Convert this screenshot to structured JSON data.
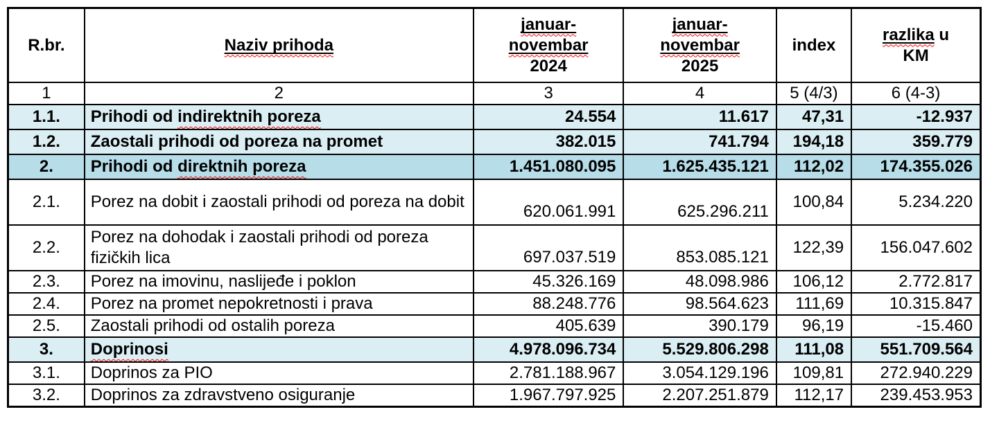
{
  "table": {
    "colors": {
      "row_light": "#daeef3",
      "row_medium": "#b6dde8",
      "squiggle": "#ff0000",
      "border": "#000000"
    },
    "columns_header": [
      {
        "id": "rbr",
        "parts": [
          {
            "text": "R.br."
          }
        ]
      },
      {
        "id": "naziv",
        "parts": [
          {
            "text": "Naziv prihoda",
            "u": true,
            "sq": true
          }
        ]
      },
      {
        "id": "p2024",
        "parts": [
          {
            "text": "januar-",
            "u": true,
            "sq": true
          },
          {
            "br": true
          },
          {
            "text": "novembar",
            "u": true,
            "sq": true
          },
          {
            "br": true
          },
          {
            "text": "2024"
          }
        ]
      },
      {
        "id": "p2025",
        "parts": [
          {
            "text": "januar-",
            "u": true,
            "sq": true
          },
          {
            "br": true
          },
          {
            "text": "novembar",
            "u": true,
            "sq": true
          },
          {
            "br": true
          },
          {
            "text": "2025"
          }
        ]
      },
      {
        "id": "index",
        "parts": [
          {
            "text": "index"
          }
        ]
      },
      {
        "id": "razlika",
        "parts": [
          {
            "text": "razlika",
            "u": true,
            "sq": true
          },
          {
            "text": " u"
          },
          {
            "br": true
          },
          {
            "text": "KM"
          }
        ]
      }
    ],
    "index_row": [
      "1",
      "2",
      "3",
      "4",
      "5 (4/3)",
      "6 (4-3)"
    ],
    "rows": [
      {
        "num": "1.1.",
        "name_parts": [
          {
            "text": "Prihodi od "
          },
          {
            "text": "indirektnih poreza",
            "sq": true
          }
        ],
        "v1": "24.554",
        "v2": "11.617",
        "idx": "47,31",
        "diff": "-12.937",
        "bold": true,
        "bg": "light",
        "tall": false
      },
      {
        "num": "1.2.",
        "name_parts": [
          {
            "text": "Zaostali prihodi od poreza na promet"
          }
        ],
        "v1": "382.015",
        "v2": "741.794",
        "idx": "194,18",
        "diff": "359.779",
        "bold": true,
        "bg": "light",
        "tall": false
      },
      {
        "num": "2.",
        "name_parts": [
          {
            "text": "Prihodi od "
          },
          {
            "text": "direktnih poreza",
            "sq": true
          }
        ],
        "v1": "1.451.080.095",
        "v2": "1.625.435.121",
        "idx": "112,02",
        "diff": "174.355.026",
        "bold": true,
        "bg": "medium",
        "tall": false
      },
      {
        "num": "2.1.",
        "name_parts": [
          {
            "text": "Porez na dobit i zaostali prihodi od poreza na dobit"
          }
        ],
        "v1": "620.061.991",
        "v2": "625.296.211",
        "idx": "100,84",
        "diff": "5.234.220",
        "bold": false,
        "bg": "none",
        "tall": true
      },
      {
        "num": "2.2.",
        "name_parts": [
          {
            "text": "Porez na dohodak i zaostali prihodi od poreza fizičkih lica"
          }
        ],
        "v1": "697.037.519",
        "v2": "853.085.121",
        "idx": "122,39",
        "diff": "156.047.602",
        "bold": false,
        "bg": "none",
        "tall": true
      },
      {
        "num": "2.3.",
        "name_parts": [
          {
            "text": "Porez na imovinu, naslijeđe i poklon"
          }
        ],
        "v1": "45.326.169",
        "v2": "48.098.986",
        "idx": "106,12",
        "diff": "2.772.817",
        "bold": false,
        "bg": "none",
        "tall": false
      },
      {
        "num": "2.4.",
        "name_parts": [
          {
            "text": "Porez na promet nepokretnosti i prava"
          }
        ],
        "v1": "88.248.776",
        "v2": "98.564.623",
        "idx": "111,69",
        "diff": "10.315.847",
        "bold": false,
        "bg": "none",
        "tall": false
      },
      {
        "num": "2.5.",
        "name_parts": [
          {
            "text": "Zaostali prihodi od ostalih poreza"
          }
        ],
        "v1": "405.639",
        "v2": "390.179",
        "idx": "96,19",
        "diff": "-15.460",
        "bold": false,
        "bg": "none",
        "tall": false
      },
      {
        "num": "3.",
        "name_parts": [
          {
            "text": "Doprinosi",
            "sq": true
          }
        ],
        "v1": "4.978.096.734",
        "v2": "5.529.806.298",
        "idx": "111,08",
        "diff": "551.709.564",
        "bold": true,
        "bg": "light",
        "tall": false
      },
      {
        "num": "3.1.",
        "name_parts": [
          {
            "text": "Doprinos za PIO"
          }
        ],
        "v1": "2.781.188.967",
        "v2": "3.054.129.196",
        "idx": "109,81",
        "diff": "272.940.229",
        "bold": false,
        "bg": "none",
        "tall": false
      },
      {
        "num": "3.2.",
        "name_parts": [
          {
            "text": "Doprinos za zdravstveno osiguranje"
          }
        ],
        "v1": "1.967.797.925",
        "v2": "2.207.251.879",
        "idx": "112,17",
        "diff": "239.453.953",
        "bold": false,
        "bg": "none",
        "tall": false
      }
    ]
  }
}
